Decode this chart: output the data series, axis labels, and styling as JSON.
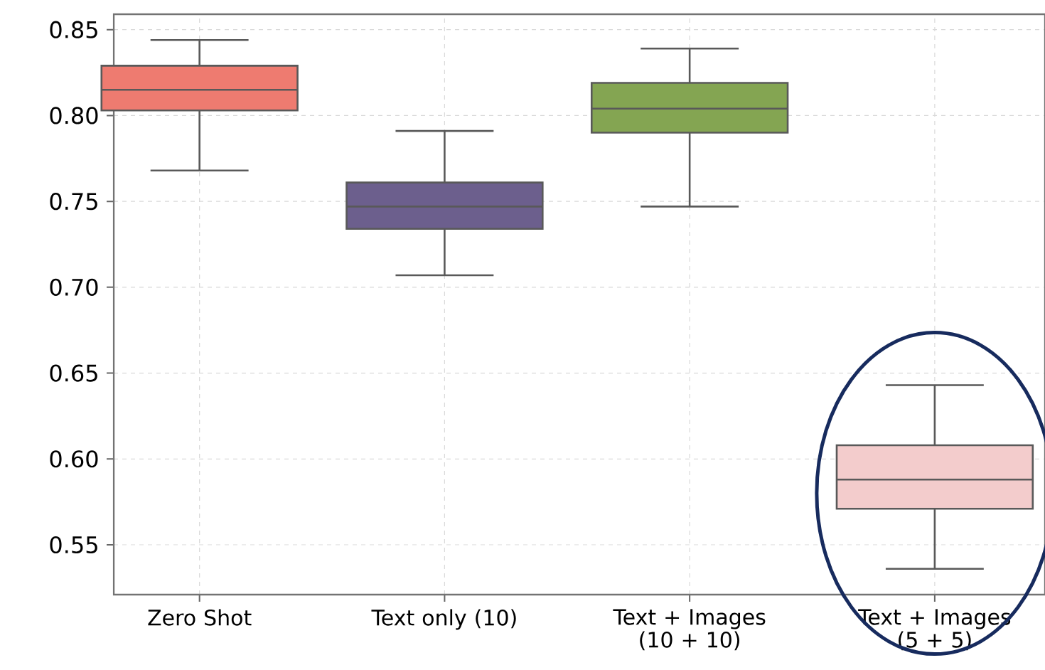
{
  "chart_data": {
    "type": "box",
    "categories": [
      "Zero Shot",
      "Text only (10)",
      "Text + Images (10 + 10)",
      "Text + Images (5 + 5)"
    ],
    "boxes": [
      {
        "low": 0.768,
        "q1": 0.803,
        "median": 0.815,
        "q3": 0.829,
        "high": 0.844
      },
      {
        "low": 0.707,
        "q1": 0.734,
        "median": 0.747,
        "q3": 0.761,
        "high": 0.791
      },
      {
        "low": 0.747,
        "q1": 0.79,
        "median": 0.804,
        "q3": 0.819,
        "high": 0.839
      },
      {
        "low": 0.536,
        "q1": 0.571,
        "median": 0.588,
        "q3": 0.608,
        "high": 0.643
      }
    ],
    "colors": [
      "#ee7b70",
      "#6c5f8d",
      "#84a552",
      "#f3cccc"
    ],
    "ylim": [
      0.521,
      0.859
    ],
    "yticks": [
      0.55,
      {
        "value": 0.6,
        "label": "0.60"
      },
      0.65,
      {
        "value": 0.7,
        "label": "0.70"
      },
      0.75,
      {
        "value": 0.8,
        "label": "0.80"
      },
      0.85
    ],
    "grid": true
  }
}
